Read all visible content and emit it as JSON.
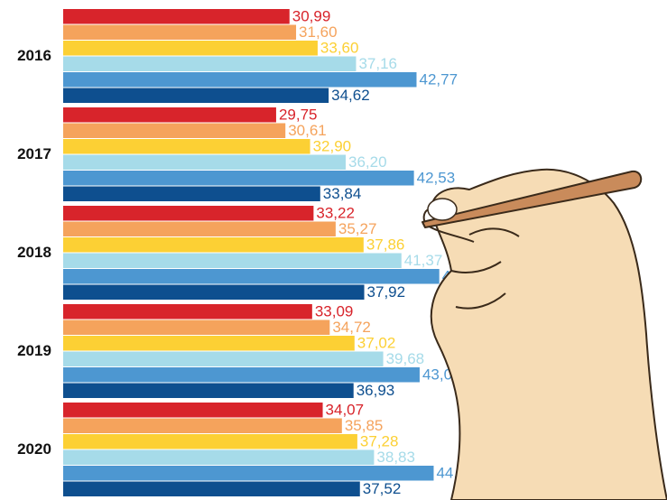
{
  "chart_data": {
    "type": "hbar-grouped",
    "categories": [
      "2016",
      "2017",
      "2018",
      "2019",
      "2020"
    ],
    "series": [
      {
        "color": "#d8242b",
        "values": [
          30.99,
          29.75,
          33.22,
          33.09,
          34.07
        ],
        "value_labels": [
          "30,99",
          "29,75",
          "33,22",
          "33,09",
          "34,07"
        ]
      },
      {
        "color": "#f5a35c",
        "values": [
          31.6,
          30.61,
          35.27,
          34.72,
          35.85
        ],
        "value_labels": [
          "31,60",
          "30,61",
          "35,27",
          "34,72",
          "35,85"
        ]
      },
      {
        "color": "#fcd034",
        "values": [
          33.6,
          32.9,
          37.86,
          37.02,
          37.28
        ],
        "value_labels": [
          "33,60",
          "32,90",
          "37,86",
          "37,02",
          "37,28"
        ]
      },
      {
        "color": "#a6dbe9",
        "values": [
          37.16,
          36.2,
          41.37,
          39.68,
          38.83
        ],
        "value_labels": [
          "37,16",
          "36,20",
          "41,37",
          "39,68",
          "38,83"
        ]
      },
      {
        "color": "#4d97d1",
        "values": [
          42.77,
          42.53,
          44.88,
          43.06,
          44.36
        ],
        "value_labels": [
          "42,77",
          "42,53",
          "44,88",
          "43,06",
          "44,36"
        ]
      },
      {
        "color": "#0e4f8f",
        "values": [
          34.62,
          33.84,
          37.92,
          36.93,
          37.52
        ],
        "value_labels": [
          "34,62",
          "33,84",
          "37,92",
          "36,93",
          "37,52"
        ]
      }
    ],
    "xlim": [
      10,
      66
    ]
  }
}
